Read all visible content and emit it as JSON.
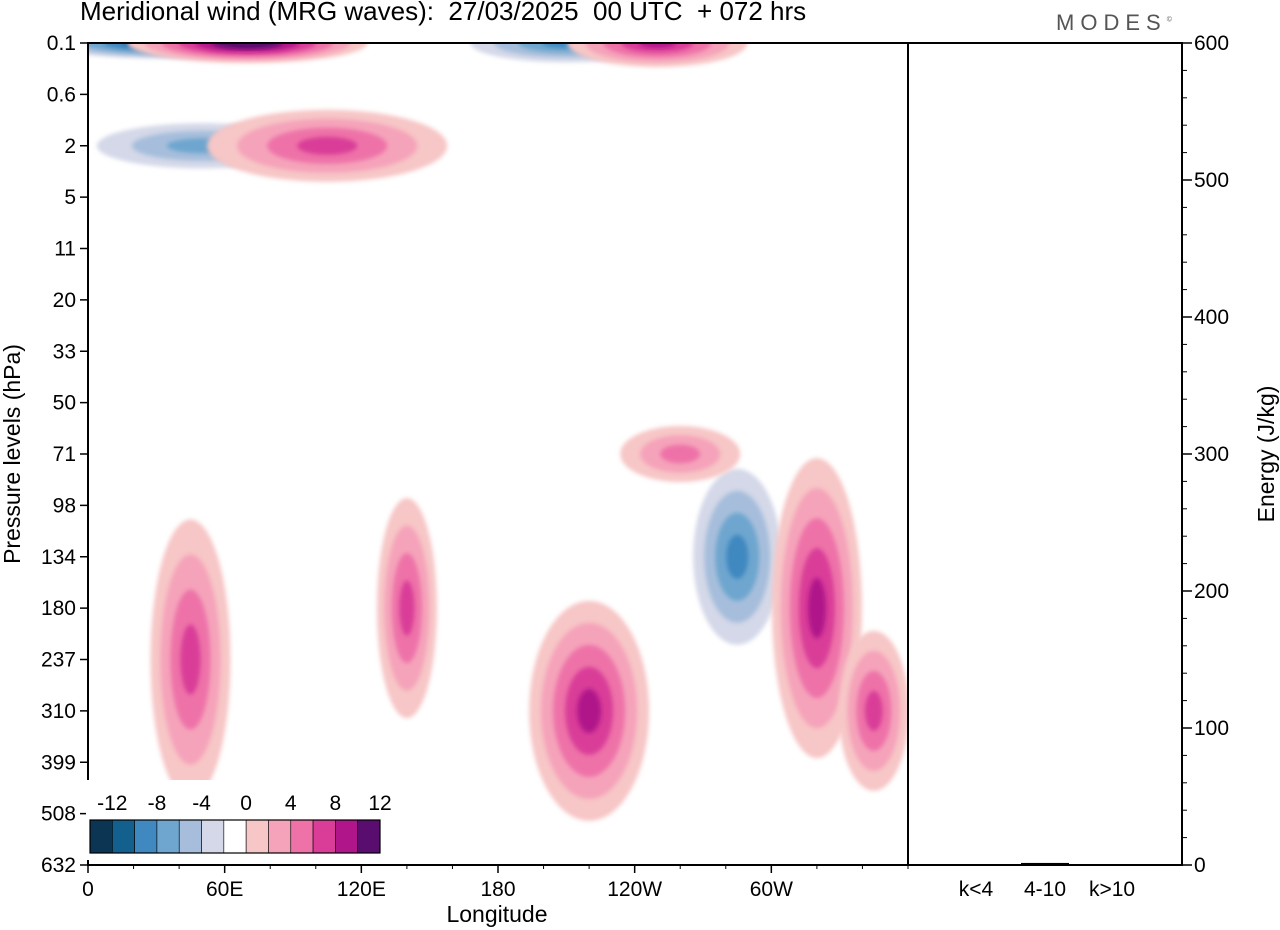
{
  "title": "Meridional wind (MRG waves):  27/03/2025  00 UTC  + 072 hrs",
  "brand": "MODES",
  "brand_mark": "©",
  "chart_data": [
    {
      "type": "heatmap",
      "title": "Meridional wind (MRG waves):  27/03/2025  00 UTC  + 072 hrs",
      "xlabel": "Longitude",
      "ylabel": "Pressure levels (hPa)",
      "x_ticks": [
        "0",
        "60E",
        "120E",
        "180",
        "120W",
        "60W"
      ],
      "x_tick_values": [
        0,
        60,
        120,
        180,
        240,
        300
      ],
      "xlim": [
        0,
        360
      ],
      "y_ticks": [
        "0.1",
        "0.6",
        "2",
        "5",
        "11",
        "20",
        "33",
        "50",
        "71",
        "98",
        "134",
        "180",
        "237",
        "310",
        "399",
        "508",
        "632"
      ],
      "colorbar": {
        "levels": [
          -14,
          -12,
          -10,
          -8,
          -6,
          -4,
          -2,
          2,
          4,
          6,
          8,
          10,
          12,
          14
        ],
        "labels": [
          "-12",
          "-8",
          "-4",
          "0",
          "4",
          "8",
          "12"
        ],
        "colors": [
          "#0b3552",
          "#135f8e",
          "#3f88c0",
          "#6ea6cf",
          "#a6bedb",
          "#d4d8e8",
          "#ffffff",
          "#f7c6c6",
          "#f5a3ba",
          "#ee72a8",
          "#d93d98",
          "#b0168a",
          "#590d6e"
        ]
      },
      "features": [
        {
          "lon": 33,
          "level": "0.1",
          "value": -14
        },
        {
          "lon": 70,
          "level": "0.1",
          "value": 14
        },
        {
          "lon": 50,
          "level": "2",
          "value": -8
        },
        {
          "lon": 105,
          "level": "2",
          "value": 8
        },
        {
          "lon": 210,
          "level": "0.1",
          "value": -9
        },
        {
          "lon": 250,
          "level": "0.1",
          "value": 9
        },
        {
          "lon": 285,
          "level": "134",
          "value": -10
        },
        {
          "lon": 320,
          "level": "180",
          "value": 9
        },
        {
          "lon": 220,
          "level": "310",
          "value": 9
        },
        {
          "lon": 140,
          "level": "180",
          "value": 8
        },
        {
          "lon": 45,
          "level": "237",
          "value": 7
        },
        {
          "lon": 345,
          "level": "310",
          "value": 7
        },
        {
          "lon": 260,
          "level": "71",
          "value": 5
        }
      ]
    },
    {
      "type": "bar",
      "categories": [
        "k<4",
        "4-10",
        "k>10"
      ],
      "values": [
        0.5,
        1.5,
        0.3
      ],
      "ylabel": "Energy (J/kg)",
      "ylim": [
        0,
        600
      ],
      "y_ticks": [
        "0",
        "100",
        "200",
        "300",
        "400",
        "500",
        "600"
      ]
    }
  ]
}
